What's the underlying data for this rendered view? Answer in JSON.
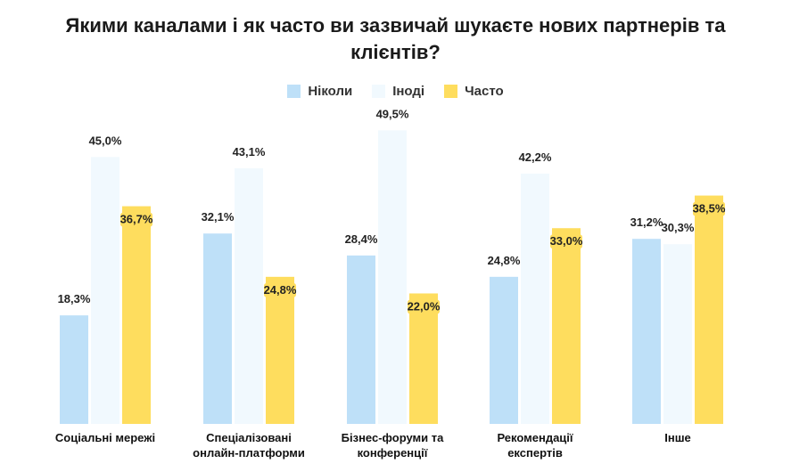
{
  "chart_data": {
    "type": "bar",
    "title_line1": "Якими каналами і як часто ви зазвичай шукаєте нових партнерів та",
    "title_line2": "клієнтів?",
    "categories": [
      [
        "Соціальні мережі"
      ],
      [
        "Спеціалізовані",
        "онлайн-платформи"
      ],
      [
        "Бізнес-форуми та",
        "конференції"
      ],
      [
        "Рекомендації",
        "експертів"
      ],
      [
        "Інше"
      ]
    ],
    "series": [
      {
        "name": "Ніколи",
        "color": "#BEE0F8",
        "values": [
          18.3,
          32.1,
          28.4,
          24.8,
          31.2
        ]
      },
      {
        "name": "Іноді",
        "color": "#F1F9FE",
        "values": [
          45.0,
          43.1,
          49.5,
          42.2,
          30.3
        ]
      },
      {
        "name": "Часто",
        "color": "#FEDD5E",
        "values": [
          36.7,
          24.8,
          22.0,
          33.0,
          38.5
        ]
      }
    ],
    "value_labels": [
      [
        "18,3%",
        "45,0%",
        "36,7%"
      ],
      [
        "32,1%",
        "43,1%",
        "24,8%"
      ],
      [
        "28,4%",
        "49,5%",
        "22,0%"
      ],
      [
        "24,8%",
        "42,2%",
        "33,0%"
      ],
      [
        "31,2%",
        "30,3%",
        "38,5%"
      ]
    ],
    "ylim": [
      0,
      50
    ],
    "legend_position": "top-center",
    "grid": false
  }
}
